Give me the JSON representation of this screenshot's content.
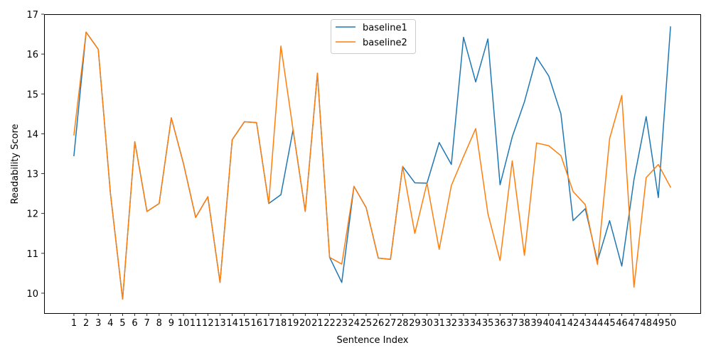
{
  "chart_data": {
    "type": "line",
    "xlabel": "Sentence Index",
    "ylabel": "Readability Score",
    "ylim": [
      9.5,
      17
    ],
    "yticks": [
      10,
      11,
      12,
      13,
      14,
      15,
      16,
      17
    ],
    "x": [
      1,
      2,
      3,
      4,
      5,
      6,
      7,
      8,
      9,
      10,
      11,
      12,
      13,
      14,
      15,
      16,
      17,
      18,
      19,
      20,
      21,
      22,
      23,
      24,
      25,
      26,
      27,
      28,
      29,
      30,
      31,
      32,
      33,
      34,
      35,
      36,
      37,
      38,
      39,
      40,
      41,
      42,
      43,
      44,
      45,
      46,
      47,
      48,
      49,
      50
    ],
    "legend_position": "top-center",
    "grid": false,
    "series": [
      {
        "name": "baseline1",
        "color": "#1f77b4",
        "values": [
          13.45,
          16.55,
          16.12,
          12.5,
          9.85,
          13.8,
          12.05,
          12.25,
          14.4,
          13.25,
          11.9,
          12.42,
          10.27,
          13.85,
          14.3,
          14.28,
          12.25,
          12.47,
          14.1,
          12.05,
          15.52,
          10.9,
          10.27,
          12.68,
          12.15,
          10.88,
          10.85,
          13.18,
          12.77,
          12.76,
          13.78,
          13.23,
          16.42,
          15.3,
          16.38,
          12.72,
          13.92,
          14.8,
          15.92,
          15.45,
          14.5,
          11.82,
          12.12,
          10.8,
          11.82,
          10.68,
          12.85,
          14.43,
          12.4,
          16.68
        ]
      },
      {
        "name": "baseline2",
        "color": "#ff7f0e",
        "values": [
          13.97,
          16.55,
          16.12,
          12.5,
          9.85,
          13.8,
          12.05,
          12.25,
          14.4,
          13.25,
          11.9,
          12.42,
          10.27,
          13.85,
          14.3,
          14.28,
          12.25,
          16.2,
          14.1,
          12.05,
          15.52,
          10.9,
          10.73,
          12.68,
          12.15,
          10.88,
          10.85,
          13.18,
          11.5,
          12.76,
          11.1,
          12.7,
          13.43,
          14.13,
          12.0,
          10.82,
          13.32,
          10.95,
          13.77,
          13.7,
          13.45,
          12.55,
          12.22,
          10.72,
          13.88,
          14.96,
          10.15,
          12.9,
          13.23,
          12.66
        ]
      }
    ]
  }
}
